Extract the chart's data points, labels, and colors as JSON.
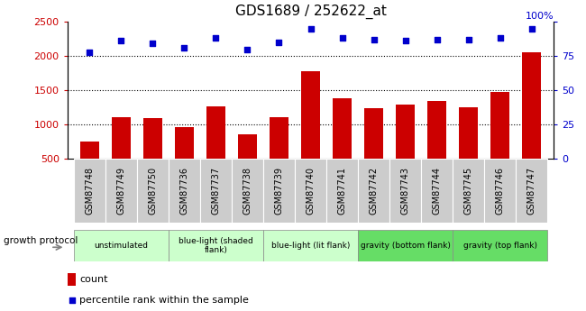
{
  "title": "GDS1689 / 252622_at",
  "samples": [
    "GSM87748",
    "GSM87749",
    "GSM87750",
    "GSM87736",
    "GSM87737",
    "GSM87738",
    "GSM87739",
    "GSM87740",
    "GSM87741",
    "GSM87742",
    "GSM87743",
    "GSM87744",
    "GSM87745",
    "GSM87746",
    "GSM87747"
  ],
  "counts": [
    750,
    1100,
    1090,
    960,
    1270,
    850,
    1100,
    1780,
    1380,
    1240,
    1290,
    1340,
    1250,
    1470,
    2050
  ],
  "percentile_ranks": [
    78,
    86,
    84,
    81,
    88,
    80,
    85,
    95,
    88,
    87,
    86,
    87,
    87,
    88,
    95
  ],
  "bar_color": "#cc0000",
  "dot_color": "#0000cc",
  "ylim_left": [
    500,
    2500
  ],
  "ylim_right": [
    0,
    100
  ],
  "yticks_left": [
    500,
    1000,
    1500,
    2000,
    2500
  ],
  "yticks_right": [
    0,
    25,
    50,
    75,
    100
  ],
  "groups": [
    {
      "label": "unstimulated",
      "indices": [
        0,
        1,
        2
      ],
      "color": "#ccffcc"
    },
    {
      "label": "blue-light (shaded\nflank)",
      "indices": [
        3,
        4,
        5
      ],
      "color": "#ccffcc"
    },
    {
      "label": "blue-light (lit flank)",
      "indices": [
        6,
        7,
        8
      ],
      "color": "#ccffcc"
    },
    {
      "label": "gravity (bottom flank)",
      "indices": [
        9,
        10,
        11
      ],
      "color": "#66dd66"
    },
    {
      "label": "gravity (top flank)",
      "indices": [
        12,
        13,
        14
      ],
      "color": "#66dd66"
    }
  ],
  "xlabel_area_color": "#cccccc",
  "growth_protocol_label": "growth protocol",
  "legend_count_label": "count",
  "legend_percentile_label": "percentile rank within the sample",
  "right_axis_label": "100%",
  "dotted_values": [
    1000,
    1500,
    2000
  ]
}
